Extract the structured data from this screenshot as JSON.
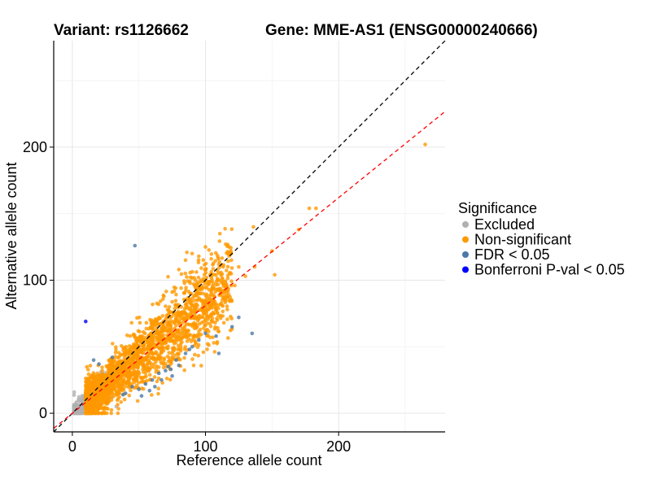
{
  "chart_data": {
    "type": "scatter",
    "title_left": "Variant: rs1126662",
    "title_right": "Gene: MME-AS1 (ENSG00000240666)",
    "xlabel": "Reference allele count",
    "ylabel": "Alternative allele count",
    "xlim": [
      -14,
      280
    ],
    "ylim": [
      -14,
      280
    ],
    "x_ticks": [
      0,
      100,
      200
    ],
    "y_ticks": [
      0,
      100,
      200
    ],
    "x_tick_labels": [
      "0",
      "100",
      "200"
    ],
    "y_tick_labels": [
      "0",
      "100",
      "200"
    ],
    "grid": true,
    "reference_lines": [
      {
        "name": "identity",
        "slope": 1.0,
        "intercept": 0,
        "color": "#000000",
        "style": "dashed"
      },
      {
        "name": "fit",
        "slope": 0.81,
        "intercept": 0,
        "color": "#ff0000",
        "style": "dashed"
      }
    ],
    "legend": {
      "title": "Significance",
      "position": "right",
      "entries": [
        {
          "label": "Excluded",
          "color": "#b0b0b0"
        },
        {
          "label": "Non-significant",
          "color": "#ff9900"
        },
        {
          "label": "FDR < 0.05",
          "color": "#4a78a8"
        },
        {
          "label": "Bonferroni P-val < 0.05",
          "color": "#0000ff"
        }
      ]
    },
    "series": [
      {
        "name": "Excluded",
        "color": "#b0b0b0",
        "cluster": {
          "n": 220,
          "x_range": [
            1,
            30
          ],
          "slope": 0.85,
          "spread": 4,
          "seed": 11
        },
        "points": [
          [
            4,
            2
          ],
          [
            8,
            3
          ],
          [
            15,
            5
          ],
          [
            22,
            10
          ],
          [
            28,
            15
          ],
          [
            33,
            5
          ],
          [
            12,
            20
          ],
          [
            25,
            8
          ]
        ]
      },
      {
        "name": "Non-significant",
        "color": "#ff9900",
        "cluster": {
          "n": 2200,
          "x_range": [
            10,
            120
          ],
          "slope": 0.82,
          "spread": 7,
          "seed": 23
        },
        "points": [
          [
            265,
            202
          ],
          [
            178,
            154
          ],
          [
            183,
            154
          ],
          [
            136,
            140
          ],
          [
            150,
            122
          ],
          [
            152,
            104
          ],
          [
            170,
            138
          ],
          [
            125,
            110
          ],
          [
            118,
            105
          ],
          [
            110,
            112
          ],
          [
            100,
            125
          ],
          [
            95,
            118
          ],
          [
            90,
            120
          ],
          [
            85,
            115
          ],
          [
            130,
            103
          ],
          [
            137,
            110
          ],
          [
            122,
            96
          ],
          [
            115,
            95
          ],
          [
            105,
            100
          ],
          [
            80,
            108
          ],
          [
            95,
            95
          ]
        ]
      },
      {
        "name": "FDR < 0.05",
        "color": "#4a78a8",
        "points": [
          [
            47,
            126
          ],
          [
            16,
            40
          ],
          [
            20,
            37
          ],
          [
            30,
            42
          ],
          [
            40,
            15
          ],
          [
            45,
            20
          ],
          [
            50,
            18
          ],
          [
            55,
            22
          ],
          [
            60,
            25
          ],
          [
            62,
            20
          ],
          [
            65,
            30
          ],
          [
            70,
            32
          ],
          [
            72,
            35
          ],
          [
            75,
            28
          ],
          [
            78,
            40
          ],
          [
            80,
            36
          ],
          [
            85,
            45
          ],
          [
            90,
            50
          ],
          [
            95,
            55
          ],
          [
            100,
            60
          ],
          [
            110,
            45
          ],
          [
            120,
            65
          ],
          [
            135,
            60
          ],
          [
            125,
            72
          ],
          [
            108,
            58
          ],
          [
            67,
            25
          ],
          [
            58,
            17
          ],
          [
            38,
            14
          ],
          [
            52,
            13
          ],
          [
            74,
            33
          ],
          [
            88,
            48
          ]
        ]
      },
      {
        "name": "Bonferroni P-val < 0.05",
        "color": "#0000ff",
        "points": [
          [
            10,
            69
          ]
        ]
      }
    ]
  }
}
